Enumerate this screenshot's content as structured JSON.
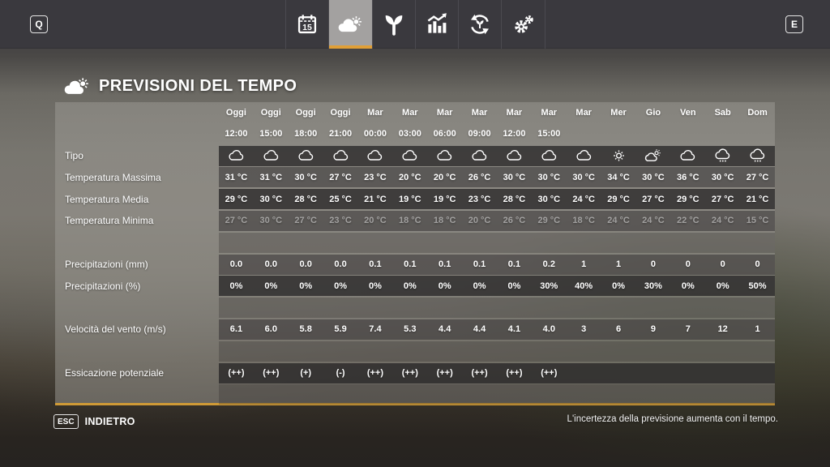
{
  "topbar": {
    "left_key": "Q",
    "right_key": "E",
    "calendar_day": "15",
    "tabs": [
      {
        "id": "calendar",
        "icon": "calendar-icon",
        "selected": false
      },
      {
        "id": "weather",
        "icon": "weather-icon",
        "selected": true
      },
      {
        "id": "crops",
        "icon": "sprout-icon",
        "selected": false
      },
      {
        "id": "prices",
        "icon": "stats-icon",
        "selected": false
      },
      {
        "id": "rotation",
        "icon": "crop-rotation-icon",
        "selected": false
      },
      {
        "id": "settings",
        "icon": "gears-icon",
        "selected": false
      }
    ]
  },
  "page": {
    "title": "PREVISIONI DEL TEMPO"
  },
  "forecast": {
    "columns": [
      {
        "day": "Oggi",
        "time": "12:00"
      },
      {
        "day": "Oggi",
        "time": "15:00"
      },
      {
        "day": "Oggi",
        "time": "18:00"
      },
      {
        "day": "Oggi",
        "time": "21:00"
      },
      {
        "day": "Mar",
        "time": "00:00"
      },
      {
        "day": "Mar",
        "time": "03:00"
      },
      {
        "day": "Mar",
        "time": "06:00"
      },
      {
        "day": "Mar",
        "time": "09:00"
      },
      {
        "day": "Mar",
        "time": "12:00"
      },
      {
        "day": "Mar",
        "time": "15:00"
      },
      {
        "day": "Mar",
        "time": ""
      },
      {
        "day": "Mer",
        "time": ""
      },
      {
        "day": "Gio",
        "time": ""
      },
      {
        "day": "Ven",
        "time": ""
      },
      {
        "day": "Sab",
        "time": ""
      },
      {
        "day": "Dom",
        "time": ""
      }
    ],
    "rows": [
      {
        "label": "Tipo",
        "type": "icons",
        "shade": "dark",
        "icons": [
          "cloud",
          "cloud",
          "cloud",
          "cloud",
          "cloud",
          "cloud",
          "cloud",
          "cloud",
          "cloud",
          "cloud",
          "cloud",
          "sun",
          "sun-cloud",
          "cloud",
          "rain",
          "rain"
        ]
      },
      {
        "label": "Temperatura Massima",
        "shade": "med",
        "values": [
          "31 °C",
          "31 °C",
          "30 °C",
          "27 °C",
          "23 °C",
          "20 °C",
          "20 °C",
          "26 °C",
          "30 °C",
          "30 °C",
          "30 °C",
          "34 °C",
          "30 °C",
          "36 °C",
          "30 °C",
          "27 °C"
        ]
      },
      {
        "label": "Temperatura Media",
        "shade": "dark",
        "values": [
          "29 °C",
          "30 °C",
          "28 °C",
          "25 °C",
          "21 °C",
          "19 °C",
          "19 °C",
          "23 °C",
          "28 °C",
          "30 °C",
          "24 °C",
          "29 °C",
          "27 °C",
          "29 °C",
          "27 °C",
          "21 °C"
        ]
      },
      {
        "label": "Temperatura Minima",
        "shade": "med",
        "dimmed": true,
        "values": [
          "27 °C",
          "30 °C",
          "27 °C",
          "23 °C",
          "20 °C",
          "18 °C",
          "18 °C",
          "20 °C",
          "26 °C",
          "29 °C",
          "18 °C",
          "24 °C",
          "24 °C",
          "22 °C",
          "24 °C",
          "15 °C"
        ]
      },
      {
        "type": "spacer"
      },
      {
        "label": "Precipitazioni (mm)",
        "shade": "med",
        "values": [
          "0.0",
          "0.0",
          "0.0",
          "0.0",
          "0.1",
          "0.1",
          "0.1",
          "0.1",
          "0.1",
          "0.2",
          "1",
          "1",
          "0",
          "0",
          "0",
          "0"
        ]
      },
      {
        "label": "Precipitazioni (%)",
        "shade": "dark",
        "values": [
          "0%",
          "0%",
          "0%",
          "0%",
          "0%",
          "0%",
          "0%",
          "0%",
          "0%",
          "30%",
          "40%",
          "0%",
          "30%",
          "0%",
          "0%",
          "50%"
        ]
      },
      {
        "type": "spacer"
      },
      {
        "label": "Velocità del vento (m/s)",
        "shade": "med",
        "values": [
          "6.1",
          "6.0",
          "5.8",
          "5.9",
          "7.4",
          "5.3",
          "4.4",
          "4.4",
          "4.1",
          "4.0",
          "3",
          "6",
          "9",
          "7",
          "12",
          "1"
        ]
      },
      {
        "type": "spacer"
      },
      {
        "label": "Essicazione potenziale",
        "shade": "dark",
        "values": [
          "(++)",
          "(++)",
          "(+)",
          "(-)",
          "(++)",
          "(++)",
          "(++)",
          "(++)",
          "(++)",
          "(++)",
          "",
          "",
          "",
          "",
          "",
          ""
        ]
      },
      {
        "type": "spacer"
      }
    ]
  },
  "footer": {
    "key": "ESC",
    "back_label": "INDIETRO",
    "note": "L'incertezza della previsione aumenta con il tempo."
  },
  "colors": {
    "accent_orange": "#e09f37",
    "panel_rule_orange": "#cf9a36",
    "topbar_bg": "#3a393e"
  }
}
